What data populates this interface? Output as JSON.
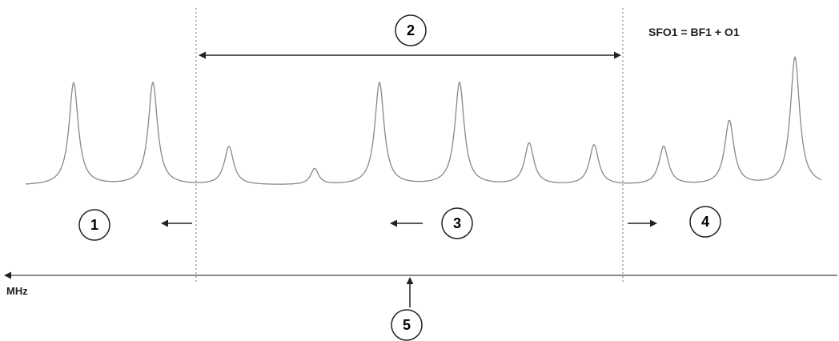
{
  "equation": "SFO1 = BF1 + O1",
  "axis_unit": "MHz",
  "markers": [
    {
      "id": "1",
      "label": "1"
    },
    {
      "id": "2",
      "label": "2"
    },
    {
      "id": "3",
      "label": "3"
    },
    {
      "id": "4",
      "label": "4"
    },
    {
      "id": "5",
      "label": "5"
    }
  ]
}
